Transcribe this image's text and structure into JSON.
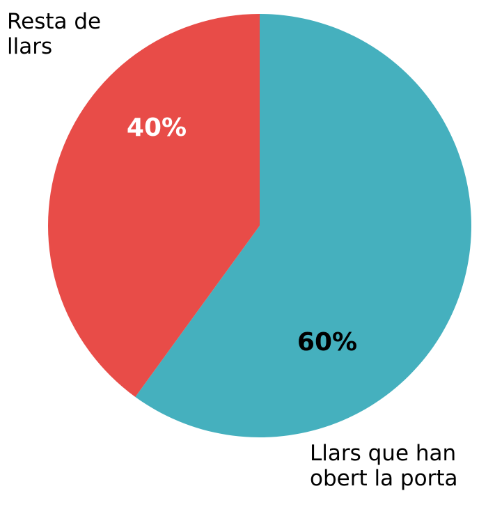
{
  "chart_data": {
    "type": "pie",
    "categories": [
      "Llars que han obert la porta",
      "Resta de llars"
    ],
    "values": [
      60,
      40
    ],
    "value_labels": [
      "60%",
      "40%"
    ],
    "colors": [
      "#45b0be",
      "#e84c48"
    ]
  }
}
